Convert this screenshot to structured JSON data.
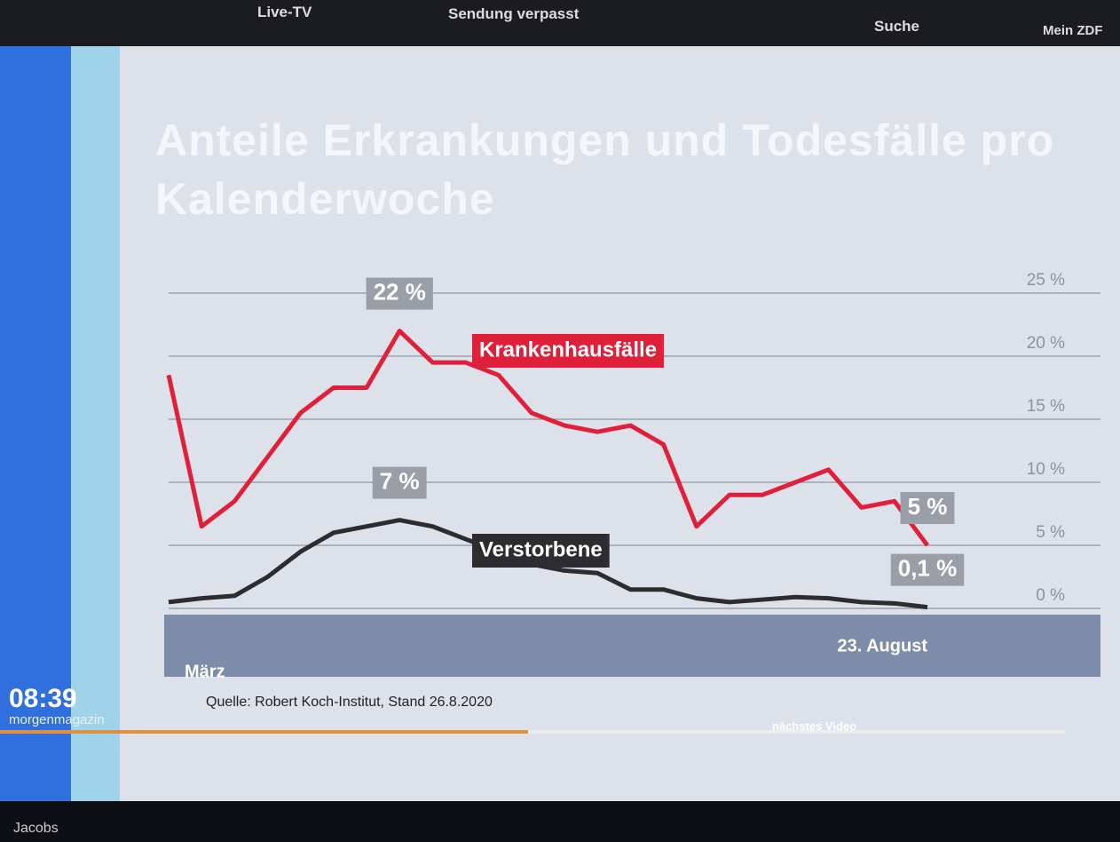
{
  "ui": {
    "nav": {
      "live": "Live-TV",
      "missed": "Sendung verpasst",
      "search": "Suche",
      "account": "Mein ZDF"
    },
    "clock": "08:39",
    "show": "morgenmagazin",
    "source": "Quelle: Robert Koch-Institut, Stand 26.8.2020",
    "next": "nächstes Video",
    "taskbar_user": "Jacobs"
  },
  "chart_data": {
    "type": "line",
    "title": "Anteile Erkrankungen und Todesfälle pro Kalenderwoche",
    "categories": [
      "März",
      null,
      null,
      null,
      null,
      null,
      null,
      null,
      null,
      null,
      null,
      null,
      null,
      null,
      null,
      null,
      null,
      null,
      null,
      null,
      null,
      null,
      null,
      "23. August"
    ],
    "series": [
      {
        "name": "Krankenhausfälle",
        "color": "#e0203a",
        "values": [
          18.5,
          6.5,
          8.5,
          12,
          15.5,
          17.5,
          17.5,
          22,
          19.5,
          19.5,
          18.5,
          15.5,
          14.5,
          14,
          14.5,
          13,
          6.5,
          9,
          9,
          10,
          11,
          8,
          8.5,
          5
        ],
        "value_labels": [
          null,
          null,
          null,
          null,
          null,
          null,
          null,
          "22 %",
          null,
          null,
          null,
          null,
          null,
          null,
          null,
          null,
          null,
          null,
          null,
          null,
          null,
          null,
          null,
          "5 %"
        ]
      },
      {
        "name": "Verstorbene",
        "color": "#2d2d30",
        "values": [
          0.5,
          0.8,
          1,
          2.5,
          4.5,
          6,
          6.5,
          7,
          6.5,
          5.5,
          4.5,
          3.5,
          3,
          2.8,
          1.5,
          1.5,
          0.8,
          0.5,
          0.7,
          0.9,
          0.8,
          0.5,
          0.4,
          0.1
        ],
        "value_labels": [
          null,
          null,
          null,
          null,
          null,
          null,
          null,
          "7 %",
          null,
          null,
          null,
          null,
          null,
          null,
          null,
          null,
          null,
          null,
          null,
          null,
          null,
          null,
          null,
          "0,1 %"
        ]
      }
    ],
    "ylim": [
      0,
      25
    ],
    "yticks": [
      {
        "value": 0,
        "label": "0 %"
      },
      {
        "value": 5,
        "label": "5 %"
      },
      {
        "value": 10,
        "label": "10 %"
      },
      {
        "value": 15,
        "label": "15 %"
      },
      {
        "value": 20,
        "label": "20 %"
      },
      {
        "value": 25,
        "label": "25 %"
      }
    ],
    "grid": true
  }
}
